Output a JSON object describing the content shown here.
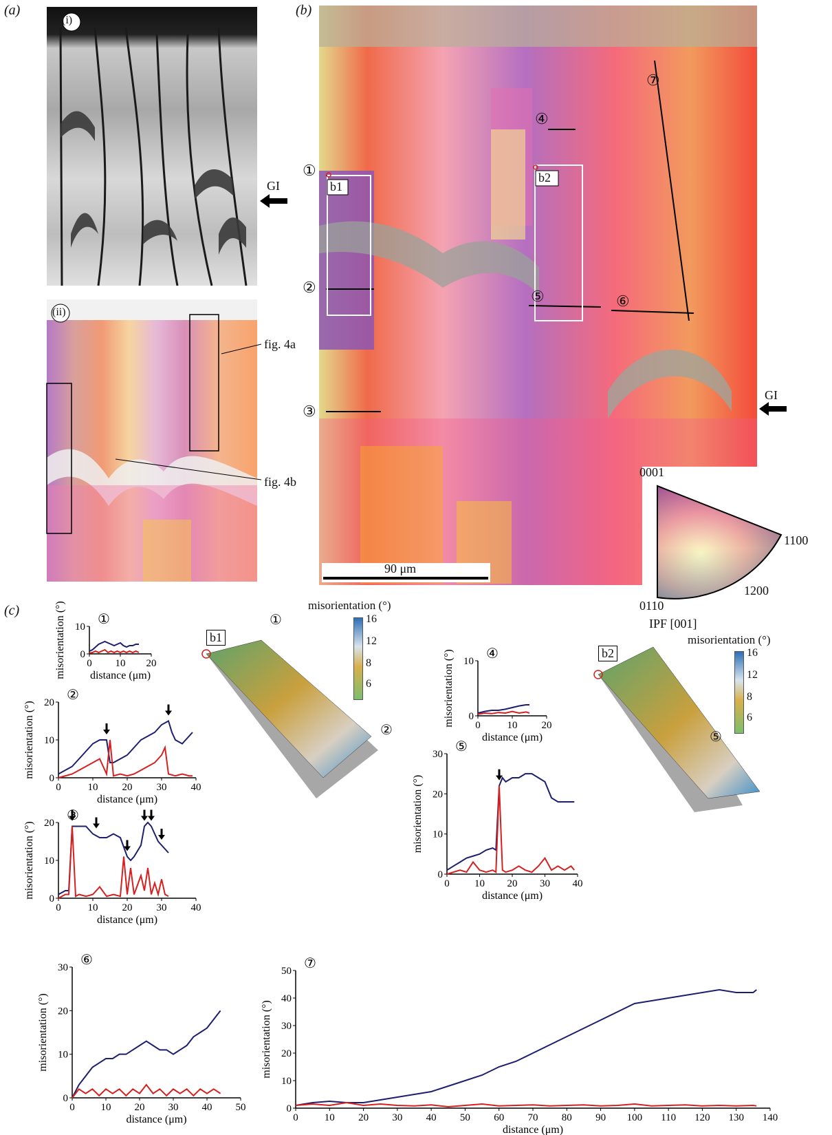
{
  "panel_labels": {
    "a": "(a)",
    "b": "(b)",
    "c": "(c)"
  },
  "panel_a": {
    "sub_i": "(i)",
    "sub_ii": "(ii)",
    "gi_label": "GI",
    "fig4a": "fig. 4a",
    "fig4b": "fig. 4b"
  },
  "panel_b": {
    "gi_label": "GI",
    "scale_bar": "90 μm",
    "box_b1": "b1",
    "box_b2": "b2",
    "line_markers": [
      "①",
      "②",
      "③",
      "④",
      "⑤",
      "⑥",
      "⑦"
    ],
    "ipf_key": {
      "top": "0001",
      "right": "1100",
      "mid": "1200",
      "bottom": "0110",
      "caption": "IPF [001]"
    }
  },
  "surfaces": {
    "b1": {
      "label": "b1",
      "colorbar_title": "misorientation (°)",
      "ticks": [
        "16",
        "12",
        "8",
        "6"
      ],
      "markers": [
        "①",
        "②"
      ]
    },
    "b2": {
      "label": "b2",
      "colorbar_title": "misorientation (°)",
      "ticks": [
        "16",
        "12",
        "8",
        "6"
      ],
      "markers": [
        "⑤"
      ]
    }
  },
  "colors": {
    "blue_line": "#1b1f6e",
    "red_line": "#d6201f"
  },
  "chart_data": [
    {
      "id": "1",
      "type": "line",
      "marker": "①",
      "xlabel": "distance (μm)",
      "ylabel": "misorientation (°)",
      "xlim": [
        0,
        20
      ],
      "ylim": [
        0,
        10
      ],
      "xticks": [
        0,
        10,
        20
      ],
      "yticks": [
        0,
        10
      ],
      "series": [
        {
          "color": "blue",
          "x": [
            0,
            1,
            2,
            3,
            4,
            5,
            6,
            7,
            8,
            9,
            10,
            11,
            12,
            13,
            14,
            15,
            16
          ],
          "values": [
            1,
            1.5,
            2.5,
            3.5,
            4,
            4.5,
            4,
            3.5,
            3,
            3.5,
            4,
            3,
            2.5,
            3,
            3,
            3.5,
            3.5
          ]
        },
        {
          "color": "red",
          "x": [
            0,
            1,
            2,
            3,
            4,
            5,
            6,
            7,
            8,
            9,
            10,
            11,
            12,
            13,
            14,
            15,
            16
          ],
          "values": [
            0.3,
            0.5,
            1,
            0.5,
            1,
            1.5,
            0.5,
            1,
            0.5,
            1,
            0.5,
            1,
            0.5,
            1,
            0.5,
            1,
            0.5
          ]
        }
      ]
    },
    {
      "id": "2",
      "type": "line",
      "marker": "②",
      "xlabel": "distance (μm)",
      "ylabel": "misorientation (°)",
      "xlim": [
        0,
        40
      ],
      "ylim": [
        0,
        20
      ],
      "xticks": [
        0,
        10,
        20,
        30,
        40
      ],
      "yticks": [
        0,
        10,
        20
      ],
      "arrows_x": [
        14,
        32
      ],
      "series": [
        {
          "color": "blue",
          "x": [
            0,
            2,
            4,
            6,
            8,
            10,
            12,
            14,
            15,
            16,
            18,
            20,
            22,
            24,
            26,
            28,
            30,
            32,
            33,
            34,
            36,
            38,
            39
          ],
          "values": [
            1,
            2,
            3,
            5,
            7,
            9,
            10,
            10,
            4,
            4,
            5,
            6,
            8,
            10,
            11,
            12,
            14,
            15,
            12,
            10,
            9,
            11,
            12
          ]
        },
        {
          "color": "red",
          "x": [
            0,
            2,
            4,
            6,
            8,
            10,
            12,
            14,
            15,
            16,
            18,
            20,
            22,
            24,
            26,
            28,
            30,
            31,
            32,
            34,
            36,
            38,
            39
          ],
          "values": [
            0,
            0.5,
            1,
            2,
            3,
            4,
            5,
            1,
            10,
            0.5,
            1,
            0.5,
            1,
            2,
            3,
            4,
            6,
            8,
            1,
            0.5,
            1,
            0.5,
            0.5
          ]
        }
      ]
    },
    {
      "id": "3",
      "type": "line",
      "marker": "③",
      "xlabel": "distance (μm)",
      "ylabel": "misorientation (°)",
      "xlim": [
        0,
        40
      ],
      "ylim": [
        0,
        20
      ],
      "xticks": [
        0,
        10,
        20,
        30,
        40
      ],
      "yticks": [
        0,
        10,
        20
      ],
      "arrows_x": [
        4,
        11,
        20,
        25,
        27,
        30
      ],
      "series": [
        {
          "color": "blue",
          "x": [
            0,
            1,
            2,
            3,
            4,
            5,
            6,
            8,
            10,
            12,
            14,
            16,
            18,
            20,
            21,
            22,
            24,
            25,
            26,
            27,
            28,
            29,
            30,
            31,
            32
          ],
          "values": [
            1,
            1.5,
            2,
            2,
            19,
            19,
            19,
            19,
            17,
            16,
            16,
            17,
            16,
            11,
            10,
            11,
            14,
            19,
            20,
            19,
            17,
            15,
            14,
            13,
            12
          ]
        },
        {
          "color": "red",
          "x": [
            0,
            1,
            2,
            3,
            4,
            5,
            6,
            8,
            10,
            12,
            14,
            16,
            18,
            19,
            20,
            21,
            22,
            24,
            25,
            26,
            27,
            28,
            29,
            30,
            31,
            32
          ],
          "values": [
            0,
            0.5,
            1,
            1,
            19,
            0.5,
            1,
            0.5,
            1,
            3,
            0.5,
            1,
            0.5,
            11,
            1,
            8,
            1,
            6,
            2,
            8,
            1,
            4,
            1,
            5,
            1,
            0.5
          ]
        }
      ]
    },
    {
      "id": "4",
      "type": "line",
      "marker": "④",
      "xlabel": "distance (μm)",
      "ylabel": "misorientation (°)",
      "xlim": [
        0,
        20
      ],
      "ylim": [
        0,
        10
      ],
      "xticks": [
        0,
        10,
        20
      ],
      "yticks": [
        0,
        10
      ],
      "series": [
        {
          "color": "blue",
          "x": [
            0,
            2,
            4,
            6,
            8,
            10,
            12,
            14,
            15
          ],
          "values": [
            0.5,
            0.8,
            1,
            1,
            1.2,
            1.5,
            1.8,
            2,
            2
          ]
        },
        {
          "color": "red",
          "x": [
            0,
            2,
            4,
            6,
            8,
            10,
            12,
            14,
            15
          ],
          "values": [
            0.3,
            0.5,
            0.4,
            0.6,
            0.5,
            0.8,
            0.5,
            0.7,
            0.5
          ]
        }
      ]
    },
    {
      "id": "5",
      "type": "line",
      "marker": "⑤",
      "xlabel": "distance (μm)",
      "ylabel": "misorientation (°)",
      "xlim": [
        0,
        40
      ],
      "ylim": [
        0,
        30
      ],
      "xticks": [
        0,
        10,
        20,
        30,
        40
      ],
      "yticks": [
        0,
        10,
        20,
        30
      ],
      "arrows_x": [
        16
      ],
      "series": [
        {
          "color": "blue",
          "x": [
            0,
            2,
            4,
            6,
            8,
            10,
            12,
            14,
            15,
            16,
            17,
            18,
            20,
            22,
            24,
            26,
            28,
            30,
            32,
            34,
            36,
            38,
            39
          ],
          "values": [
            1,
            2,
            3,
            4,
            4.5,
            5,
            6,
            6.5,
            6,
            22,
            24,
            23,
            24,
            24,
            25,
            25,
            24,
            23,
            19,
            18,
            18,
            18,
            18
          ]
        },
        {
          "color": "red",
          "x": [
            0,
            2,
            4,
            6,
            8,
            10,
            12,
            14,
            15,
            16,
            17,
            18,
            20,
            22,
            24,
            26,
            28,
            30,
            32,
            34,
            36,
            38,
            39
          ],
          "values": [
            0,
            0.5,
            1,
            0.5,
            3,
            1,
            0.5,
            1,
            0.5,
            22,
            1,
            0.5,
            1,
            2,
            1,
            0.5,
            2,
            4,
            1,
            2,
            1,
            2,
            1
          ]
        }
      ]
    },
    {
      "id": "6",
      "type": "line",
      "marker": "⑥",
      "xlabel": "distance (μm)",
      "ylabel": "misorientation (°)",
      "xlim": [
        0,
        50
      ],
      "ylim": [
        0,
        30
      ],
      "xticks": [
        0,
        10,
        20,
        30,
        40,
        50
      ],
      "yticks": [
        0,
        10,
        20,
        30
      ],
      "series": [
        {
          "color": "blue",
          "x": [
            0,
            2,
            4,
            6,
            8,
            10,
            12,
            14,
            16,
            18,
            20,
            22,
            24,
            26,
            28,
            30,
            32,
            34,
            36,
            38,
            40,
            42,
            44
          ],
          "values": [
            0,
            3,
            5,
            7,
            8,
            9,
            9,
            10,
            10,
            11,
            12,
            13,
            12,
            11,
            11,
            10,
            11,
            12,
            14,
            15,
            16,
            18,
            20
          ]
        },
        {
          "color": "red",
          "x": [
            0,
            2,
            4,
            6,
            8,
            10,
            12,
            14,
            16,
            18,
            20,
            22,
            24,
            26,
            28,
            30,
            32,
            34,
            36,
            38,
            40,
            42,
            44
          ],
          "values": [
            0,
            2,
            1,
            2,
            0.5,
            2,
            1,
            2,
            0.5,
            2,
            1,
            3,
            1,
            2,
            0.5,
            2,
            1,
            2,
            0.5,
            2,
            1,
            2,
            1
          ]
        }
      ]
    },
    {
      "id": "7",
      "type": "line",
      "marker": "⑦",
      "xlabel": "distance (μm)",
      "ylabel": "misorientation (°)",
      "xlim": [
        0,
        140
      ],
      "ylim": [
        0,
        50
      ],
      "xticks": [
        0,
        10,
        20,
        30,
        40,
        50,
        60,
        70,
        80,
        90,
        100,
        110,
        120,
        130,
        140
      ],
      "yticks": [
        0,
        10,
        20,
        30,
        40,
        50
      ],
      "series": [
        {
          "color": "blue",
          "x": [
            0,
            5,
            10,
            15,
            20,
            25,
            30,
            35,
            40,
            45,
            50,
            55,
            60,
            65,
            70,
            75,
            80,
            85,
            90,
            95,
            100,
            105,
            110,
            115,
            120,
            125,
            130,
            135,
            136
          ],
          "values": [
            1,
            2,
            2.5,
            2,
            2,
            3,
            4,
            5,
            6,
            8,
            10,
            12,
            15,
            17,
            20,
            23,
            26,
            29,
            32,
            35,
            38,
            39,
            40,
            41,
            42,
            43,
            42,
            42,
            43
          ]
        },
        {
          "color": "red",
          "x": [
            0,
            5,
            10,
            15,
            20,
            25,
            30,
            35,
            40,
            45,
            50,
            55,
            60,
            65,
            70,
            75,
            80,
            85,
            90,
            95,
            100,
            105,
            110,
            115,
            120,
            125,
            130,
            135,
            136
          ],
          "values": [
            1,
            1.5,
            1,
            2,
            1,
            1.5,
            1,
            0.8,
            1.2,
            0.5,
            1,
            1.5,
            0.8,
            1,
            1.2,
            0.8,
            1,
            1.2,
            0.8,
            1,
            1.5,
            0.8,
            1,
            1.2,
            0.8,
            1,
            0.8,
            1,
            0.8
          ]
        }
      ]
    }
  ]
}
